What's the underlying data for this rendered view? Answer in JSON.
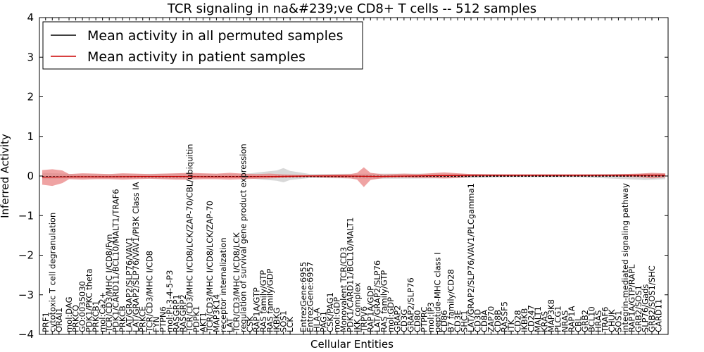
{
  "chart_data": {
    "type": "line",
    "title": "TCR signaling in na&#239;ve CD8+ T cells -- 512 samples",
    "xlabel": "Cellular Entities",
    "ylabel": "Inferred Activity",
    "ylim": [
      -4,
      4
    ],
    "yticks": [
      "4",
      "3",
      "2",
      "1",
      "0",
      "−1",
      "−2",
      "−3",
      "−4"
    ],
    "legend": {
      "position": "top-left",
      "entries": [
        {
          "label": "Mean activity in all permuted samples",
          "color": "#000000"
        },
        {
          "label": "Mean activity in patient samples",
          "color": "#cc0000"
        }
      ]
    },
    "x_count": 160,
    "categories": [
      {
        "i": 1,
        "label": "PRF1"
      },
      {
        "i": 3,
        "label": "cytotoxic T cell degranulation"
      },
      {
        "i": 5,
        "label": "ORAI1"
      },
      {
        "i": 8,
        "label": "mol:DAG"
      },
      {
        "i": 10,
        "label": "PRKCQ"
      },
      {
        "i": 12,
        "label": "GO:0035030"
      },
      {
        "i": 14,
        "label": "PDK1/PKC theta"
      },
      {
        "i": 16,
        "label": "PRKCB1"
      },
      {
        "i": 18,
        "label": "mol:Ca2+"
      },
      {
        "i": 20,
        "label": "TCR/CD3/MHC I/CD8/Fyn"
      },
      {
        "i": 22,
        "label": "PDK1/CARD11/BCL10/MALT1/TRAF6"
      },
      {
        "i": 24,
        "label": "PRKCB"
      },
      {
        "i": 26,
        "label": "LAT/GRAP2/SLP76/VAV1"
      },
      {
        "i": 28,
        "label": "LAT/GRAP2/SLP76/VAV1/PI3K Class IA"
      },
      {
        "i": 30,
        "label": "PRKCE"
      },
      {
        "i": 32,
        "label": "TCR/CD3/MHC I/CD8"
      },
      {
        "i": 34,
        "label": "FYN"
      },
      {
        "i": 36,
        "label": "PTPN6"
      },
      {
        "i": 38,
        "label": "mol:PI-3-4-5-P3"
      },
      {
        "i": 40,
        "label": "RASGRP1"
      },
      {
        "i": 42,
        "label": "RASGRP2"
      },
      {
        "i": 44,
        "label": "TCR/CD3/MHC I/CD8/LCK/ZAP-70/CBL/ubiquitin"
      },
      {
        "i": 46,
        "label": "PDPK1"
      },
      {
        "i": 48,
        "label": "AKT1"
      },
      {
        "i": 50,
        "label": "TCR/CD3/MHC I/CD8/LCK/ZAP-70"
      },
      {
        "i": 52,
        "label": "MAP3K14"
      },
      {
        "i": 54,
        "label": "receptor internalization"
      },
      {
        "i": 56,
        "label": "LAT"
      },
      {
        "i": 58,
        "label": "TCR/CD3/MHC I/CD8/LCK"
      },
      {
        "i": 60,
        "label": "regulation of survival gene product expression"
      },
      {
        "i": 62,
        "label": "CSK"
      },
      {
        "i": 64,
        "label": "RAP1A/GTP"
      },
      {
        "i": 66,
        "label": "RAS family/GTP"
      },
      {
        "i": 68,
        "label": "RAS family/GDP"
      },
      {
        "i": 70,
        "label": "IKBKG"
      },
      {
        "i": 72,
        "label": "SOS1"
      },
      {
        "i": 74,
        "label": "LCK"
      },
      {
        "i": 78,
        "label": "EntrezGene:6955"
      },
      {
        "i": 80,
        "label": "EntrezGene:6957"
      },
      {
        "i": 82,
        "label": "HLA-A"
      },
      {
        "i": 84,
        "label": "PAG1"
      },
      {
        "i": 86,
        "label": "CSK/PAG1"
      },
      {
        "i": 88,
        "label": "mol:GDP"
      },
      {
        "i": 90,
        "label": "Monovalent TCR/CD3"
      },
      {
        "i": 92,
        "label": "PDK1/CARD11/BCL10/MALT1"
      },
      {
        "i": 94,
        "label": "IKK complex"
      },
      {
        "i": 96,
        "label": "TRPV6"
      },
      {
        "i": 98,
        "label": "RAP1A/GDP"
      },
      {
        "i": 100,
        "label": "LAT/GRAP2/SLP76"
      },
      {
        "i": 102,
        "label": "RAS family/GTP"
      },
      {
        "i": 104,
        "label": "mol:GDP"
      },
      {
        "i": 106,
        "label": "GRAP2"
      },
      {
        "i": 108,
        "label": "CD3G"
      },
      {
        "i": 110,
        "label": "GRAP2/SLP76"
      },
      {
        "i": 112,
        "label": "CD80"
      },
      {
        "i": 114,
        "label": "PTPRC"
      },
      {
        "i": 116,
        "label": "mol:IP3"
      },
      {
        "i": 118,
        "label": "peptide-MHC class I"
      },
      {
        "i": 120,
        "label": "CD86"
      },
      {
        "i": 122,
        "label": "B7 family/CD28"
      },
      {
        "i": 124,
        "label": "CD3E"
      },
      {
        "i": 126,
        "label": "SHC1"
      },
      {
        "i": 128,
        "label": "LAT/GRAP2/SLP76/VAV1/PLCgamma1"
      },
      {
        "i": 130,
        "label": "CD3D"
      },
      {
        "i": 132,
        "label": "CD8A"
      },
      {
        "i": 134,
        "label": "ZAP70"
      },
      {
        "i": 136,
        "label": "CD8B"
      },
      {
        "i": 138,
        "label": "RASSF5"
      },
      {
        "i": 140,
        "label": "ITK"
      },
      {
        "i": 142,
        "label": "CD28"
      },
      {
        "i": 144,
        "label": "IKBKB"
      },
      {
        "i": 146,
        "label": "CD247"
      },
      {
        "i": 148,
        "label": "MALT1"
      },
      {
        "i": 150,
        "label": "KRAS"
      },
      {
        "i": 152,
        "label": "MAP3K8"
      },
      {
        "i": 154,
        "label": "PLCG1"
      },
      {
        "i": 156,
        "label": "NRAS"
      },
      {
        "i": 158,
        "label": "RAP1A"
      },
      {
        "i": 160,
        "label": "CBL"
      },
      {
        "i": 162,
        "label": "GRB2"
      },
      {
        "i": 164,
        "label": "BCL10"
      },
      {
        "i": 166,
        "label": "HRAS"
      },
      {
        "i": 168,
        "label": "TRAF6"
      },
      {
        "i": 170,
        "label": "CHUK"
      },
      {
        "i": 172,
        "label": "SOS1"
      },
      {
        "i": 174,
        "label": "integrin-mediated signaling pathway"
      },
      {
        "i": 176,
        "label": "RAP1A/GTP/RAPL"
      },
      {
        "i": 178,
        "label": "GRB2/SOS1"
      },
      {
        "i": 180,
        "label": "SLP76/Gads"
      },
      {
        "i": 182,
        "label": "GRB2/SOS1/SHC"
      },
      {
        "i": 184,
        "label": "CARD11"
      }
    ],
    "x_max": 186,
    "series": [
      {
        "name": "Mean activity in all permuted samples",
        "color": "#000000",
        "points": [
          [
            0,
            -0.02
          ],
          [
            186,
            0.0
          ]
        ]
      },
      {
        "name": "Mean activity in patient samples",
        "color": "#cc0000",
        "points": [
          [
            0,
            -0.03
          ],
          [
            10,
            -0.02
          ],
          [
            20,
            -0.02
          ],
          [
            30,
            -0.01
          ],
          [
            40,
            -0.01
          ],
          [
            50,
            -0.02
          ],
          [
            60,
            -0.02
          ],
          [
            70,
            -0.01
          ],
          [
            80,
            0.0
          ],
          [
            90,
            0.0
          ],
          [
            100,
            -0.01
          ],
          [
            110,
            0.0
          ],
          [
            120,
            0.01
          ],
          [
            130,
            0.02
          ],
          [
            140,
            0.02
          ],
          [
            150,
            0.02
          ],
          [
            160,
            0.02
          ],
          [
            170,
            0.02
          ],
          [
            180,
            0.02
          ],
          [
            186,
            0.02
          ]
        ],
        "band_upper": [
          [
            0,
            0.15
          ],
          [
            3,
            0.17
          ],
          [
            6,
            0.14
          ],
          [
            8,
            0.05
          ],
          [
            12,
            0.07
          ],
          [
            16,
            0.06
          ],
          [
            20,
            0.05
          ],
          [
            24,
            0.07
          ],
          [
            28,
            0.06
          ],
          [
            32,
            0.05
          ],
          [
            36,
            0.06
          ],
          [
            40,
            0.07
          ],
          [
            44,
            0.08
          ],
          [
            48,
            0.07
          ],
          [
            52,
            0.06
          ],
          [
            56,
            0.08
          ],
          [
            60,
            0.06
          ],
          [
            64,
            0.05
          ],
          [
            68,
            0.06
          ],
          [
            72,
            0.04
          ],
          [
            76,
            0.03
          ],
          [
            80,
            0.02
          ],
          [
            84,
            0.03
          ],
          [
            88,
            0.04
          ],
          [
            92,
            0.05
          ],
          [
            94,
            0.08
          ],
          [
            96,
            0.22
          ],
          [
            98,
            0.08
          ],
          [
            102,
            0.04
          ],
          [
            108,
            0.06
          ],
          [
            112,
            0.05
          ],
          [
            116,
            0.07
          ],
          [
            120,
            0.09
          ],
          [
            124,
            0.07
          ],
          [
            128,
            0.05
          ],
          [
            134,
            0.04
          ],
          [
            140,
            0.04
          ],
          [
            150,
            0.04
          ],
          [
            160,
            0.04
          ],
          [
            170,
            0.04
          ],
          [
            178,
            0.06
          ],
          [
            182,
            0.08
          ],
          [
            186,
            0.07
          ]
        ],
        "band_lower": [
          [
            0,
            -0.22
          ],
          [
            3,
            -0.25
          ],
          [
            6,
            -0.18
          ],
          [
            8,
            -0.08
          ],
          [
            12,
            -0.09
          ],
          [
            16,
            -0.08
          ],
          [
            20,
            -0.08
          ],
          [
            24,
            -0.09
          ],
          [
            28,
            -0.08
          ],
          [
            32,
            -0.07
          ],
          [
            36,
            -0.08
          ],
          [
            40,
            -0.09
          ],
          [
            44,
            -0.09
          ],
          [
            48,
            -0.08
          ],
          [
            52,
            -0.08
          ],
          [
            56,
            -0.09
          ],
          [
            60,
            -0.08
          ],
          [
            64,
            -0.07
          ],
          [
            68,
            -0.06
          ],
          [
            72,
            -0.05
          ],
          [
            76,
            -0.04
          ],
          [
            80,
            -0.03
          ],
          [
            84,
            -0.04
          ],
          [
            88,
            -0.05
          ],
          [
            92,
            -0.06
          ],
          [
            94,
            -0.09
          ],
          [
            96,
            -0.28
          ],
          [
            98,
            -0.1
          ],
          [
            102,
            -0.05
          ],
          [
            108,
            -0.04
          ],
          [
            112,
            -0.05
          ],
          [
            116,
            -0.05
          ],
          [
            120,
            -0.06
          ],
          [
            124,
            -0.05
          ],
          [
            128,
            -0.02
          ],
          [
            134,
            -0.01
          ],
          [
            140,
            -0.01
          ],
          [
            150,
            -0.01
          ],
          [
            160,
            -0.01
          ],
          [
            170,
            -0.01
          ],
          [
            178,
            -0.03
          ],
          [
            182,
            -0.06
          ],
          [
            186,
            -0.04
          ]
        ]
      }
    ],
    "permuted_band_upper": [
      [
        0,
        0.08
      ],
      [
        10,
        0.05
      ],
      [
        20,
        0.05
      ],
      [
        40,
        0.06
      ],
      [
        60,
        0.05
      ],
      [
        70,
        0.14
      ],
      [
        72,
        0.2
      ],
      [
        74,
        0.13
      ],
      [
        80,
        0.05
      ],
      [
        100,
        0.06
      ],
      [
        120,
        0.06
      ],
      [
        140,
        0.04
      ],
      [
        160,
        0.04
      ],
      [
        180,
        0.06
      ],
      [
        186,
        0.06
      ]
    ],
    "permuted_band_lower": [
      [
        0,
        -0.08
      ],
      [
        10,
        -0.06
      ],
      [
        20,
        -0.06
      ],
      [
        40,
        -0.07
      ],
      [
        60,
        -0.05
      ],
      [
        70,
        -0.12
      ],
      [
        72,
        -0.16
      ],
      [
        74,
        -0.1
      ],
      [
        80,
        -0.05
      ],
      [
        100,
        -0.07
      ],
      [
        120,
        -0.06
      ],
      [
        140,
        -0.03
      ],
      [
        160,
        -0.03
      ],
      [
        180,
        -0.1
      ],
      [
        186,
        -0.08
      ]
    ]
  }
}
